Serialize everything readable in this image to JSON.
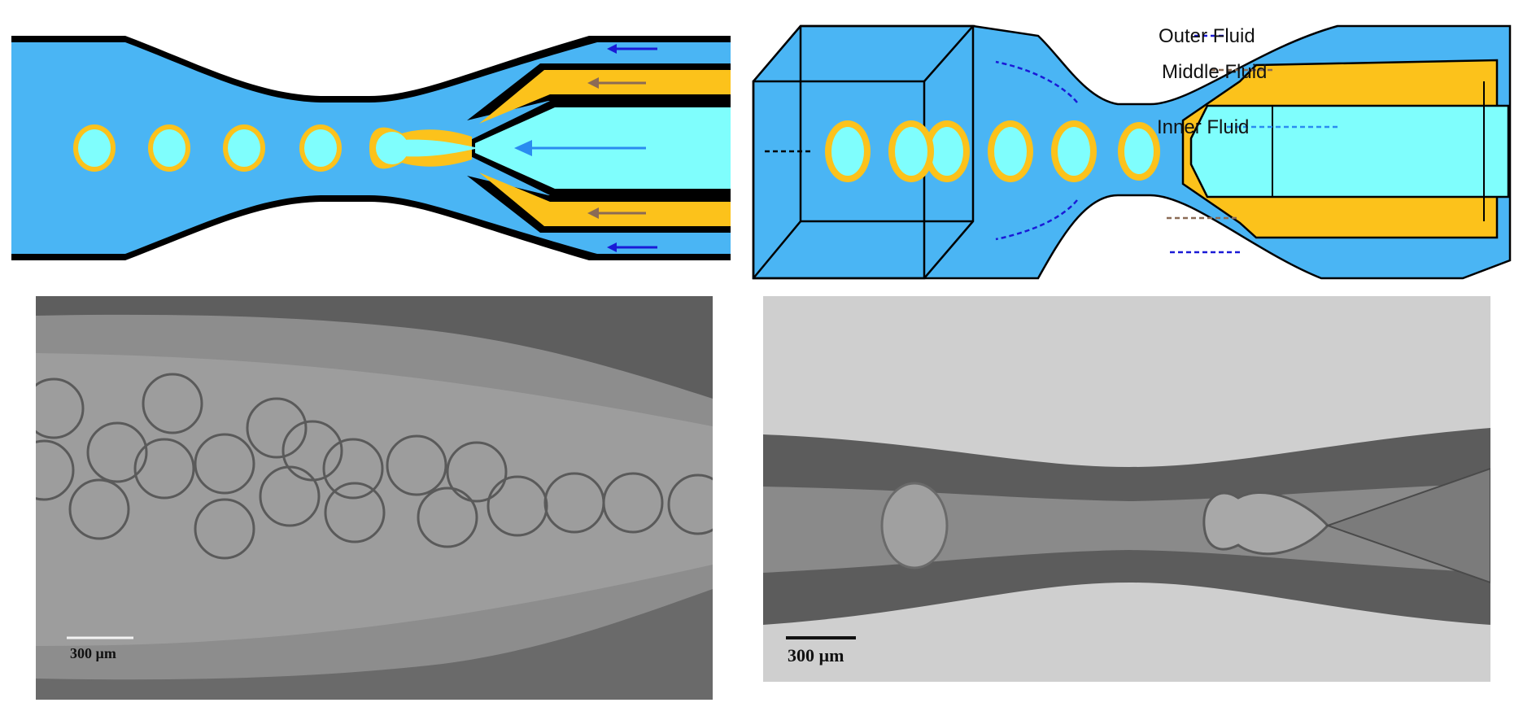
{
  "colors": {
    "outer_fluid": "#4ab5f4",
    "middle_fluid": "#fcc21b",
    "inner_fluid": "#7ffefd",
    "wall": "#000000",
    "arrow_outer": "#1a1ad6",
    "arrow_middle": "#8b6b55",
    "arrow_inner": "#2a8cf0",
    "micrograph_c_bg": "#8d8d8d",
    "micrograph_d_bg": "#cfcfcf"
  },
  "panel_b": {
    "labels": {
      "outer": "Outer Fluid",
      "middle": "Middle Fluid",
      "inner": "Inner Fluid"
    }
  },
  "panel_c": {
    "scale_bar": "300 µm"
  },
  "panel_d": {
    "scale_bar": "300 µm"
  },
  "icons": {
    "flow_arrow": "arrow-left-icon",
    "droplet": "double-emulsion-droplet-icon"
  }
}
